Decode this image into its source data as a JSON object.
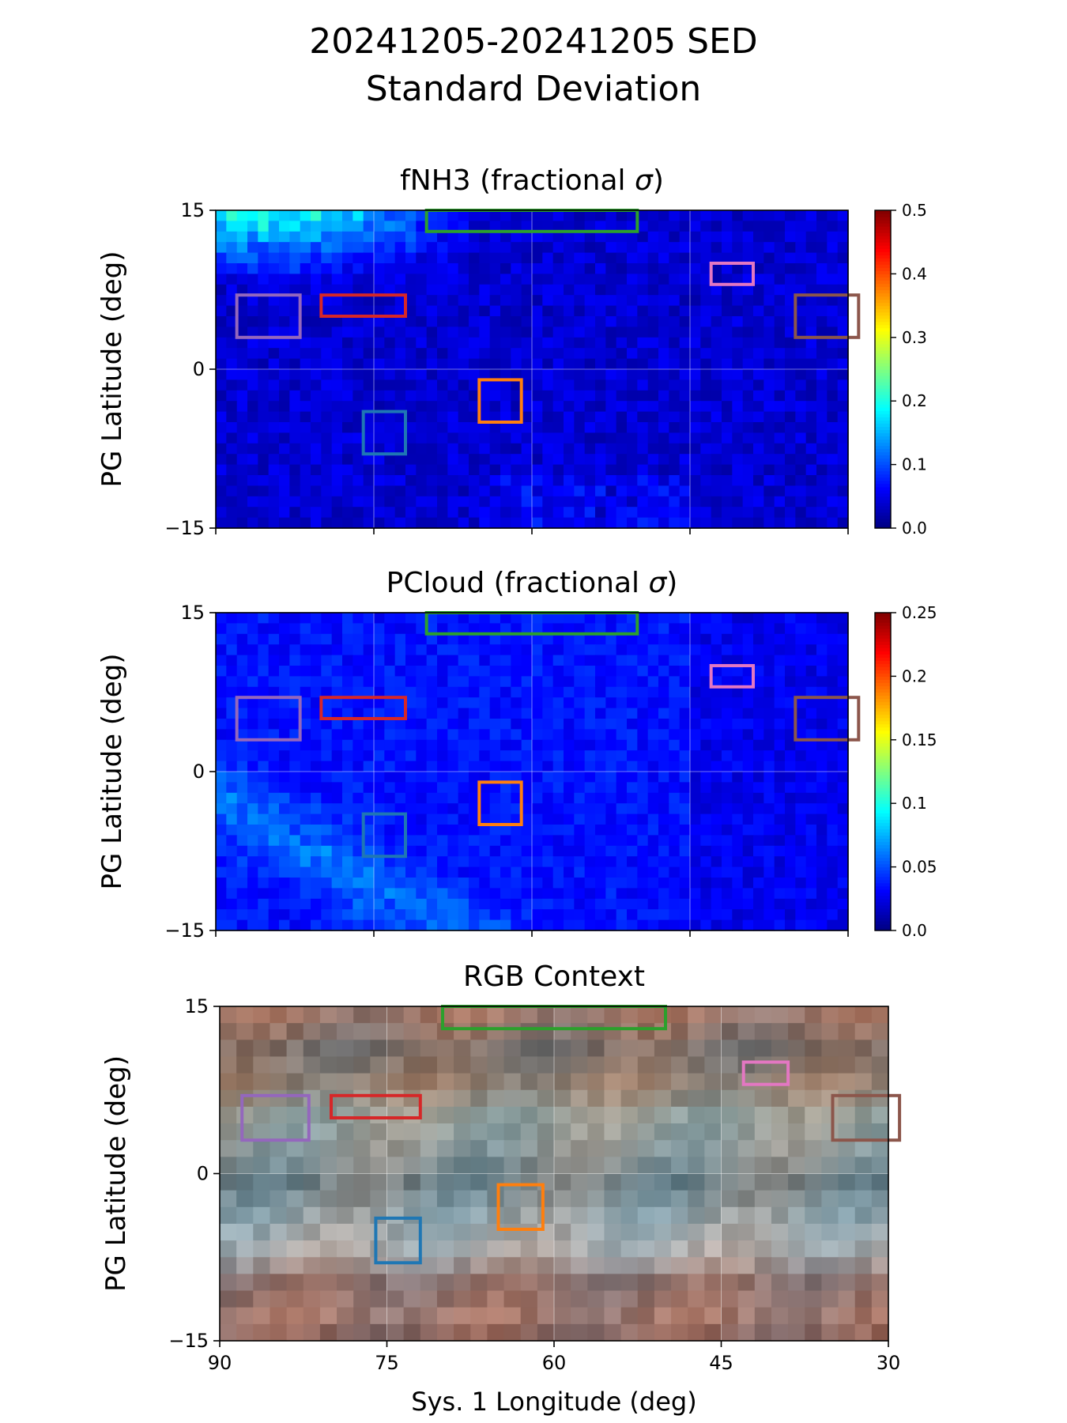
{
  "figure": {
    "title_line1": "20241205-20241205 SED",
    "title_line2": "Standard Deviation"
  },
  "chart_data": [
    {
      "type": "heatmap",
      "title": "fNH3 (fractional σ)",
      "ylabel": "PG Latitude (deg)",
      "xlabel": "",
      "xlim": [
        90,
        30
      ],
      "ylim": [
        -15,
        15
      ],
      "x_ticks": [
        90,
        75,
        60,
        45,
        30
      ],
      "x_tick_labels_shown": false,
      "y_ticks": [
        15,
        0,
        -15
      ],
      "y_tick_labels": [
        "15",
        "0",
        "−15"
      ],
      "grid": true,
      "colormap": "jet",
      "colorbar": {
        "vmin": 0.0,
        "vmax": 0.5,
        "ticks": [
          0.0,
          0.1,
          0.2,
          0.3,
          0.4,
          0.5
        ],
        "tick_labels": [
          "0.0",
          "0.1",
          "0.2",
          "0.3",
          "0.4",
          "0.5"
        ]
      },
      "field_description_values": {
        "background": 0.04,
        "high_north_west": 0.18,
        "south_band": 0.07
      }
    },
    {
      "type": "heatmap",
      "title": "PCloud (fractional σ)",
      "ylabel": "PG Latitude (deg)",
      "xlabel": "",
      "xlim": [
        90,
        30
      ],
      "ylim": [
        -15,
        15
      ],
      "x_ticks": [
        90,
        75,
        60,
        45,
        30
      ],
      "x_tick_labels_shown": false,
      "y_ticks": [
        15,
        0,
        -15
      ],
      "y_tick_labels": [
        "15",
        "0",
        "−15"
      ],
      "grid": true,
      "colormap": "jet",
      "colorbar": {
        "vmin": 0.0,
        "vmax": 0.25,
        "ticks": [
          0.0,
          0.05,
          0.1,
          0.15,
          0.2,
          0.25
        ],
        "tick_labels": [
          "0.0",
          "0.05",
          "0.1",
          "0.15",
          "0.2",
          "0.25"
        ]
      },
      "field_description_values": {
        "background": 0.035,
        "diagonal_band_peak": 0.065
      }
    },
    {
      "type": "image",
      "title": "RGB Context",
      "ylabel": "PG Latitude (deg)",
      "xlabel": "Sys. 1 Longitude (deg)",
      "xlim": [
        90,
        30
      ],
      "ylim": [
        -15,
        15
      ],
      "x_ticks": [
        90,
        75,
        60,
        45,
        30
      ],
      "x_tick_labels": [
        "90",
        "75",
        "60",
        "45",
        "30"
      ],
      "y_ticks": [
        15,
        0,
        -15
      ],
      "y_tick_labels": [
        "15",
        "0",
        "−15"
      ],
      "grid": true
    }
  ],
  "regions": [
    {
      "color": "#2ca02c",
      "lon": [
        70,
        50
      ],
      "lat": [
        13,
        15
      ]
    },
    {
      "color": "#e377c2",
      "lon": [
        43,
        39
      ],
      "lat": [
        8,
        10
      ]
    },
    {
      "color": "#9467bd",
      "lon": [
        88,
        82
      ],
      "lat": [
        3,
        7
      ]
    },
    {
      "color": "#d62728",
      "lon": [
        80,
        72
      ],
      "lat": [
        5,
        7
      ]
    },
    {
      "color": "#8c564b",
      "lon": [
        35,
        29
      ],
      "lat": [
        3,
        7
      ]
    },
    {
      "color": "#ff7f0e",
      "lon": [
        65,
        61
      ],
      "lat": [
        -5,
        -1
      ]
    },
    {
      "color": "#1f77b4",
      "lon": [
        76,
        72
      ],
      "lat": [
        -8,
        -4
      ]
    }
  ]
}
